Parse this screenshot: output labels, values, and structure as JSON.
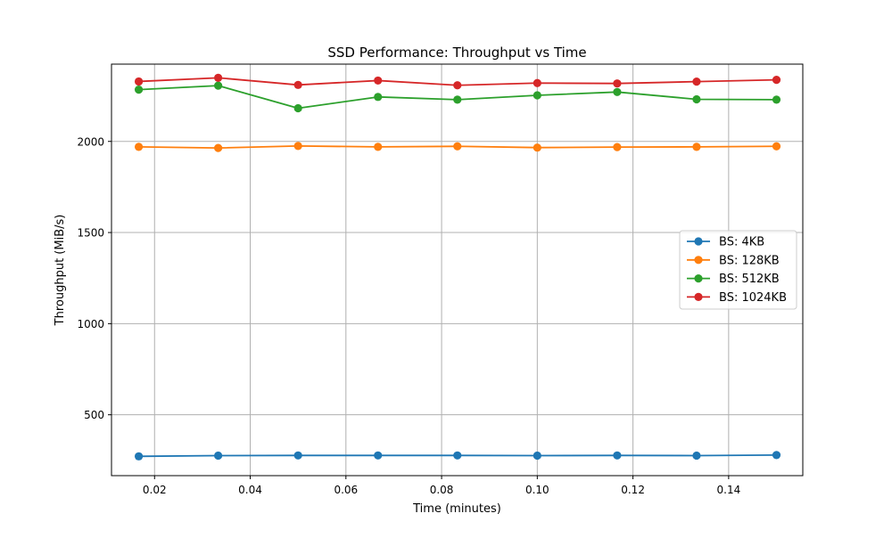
{
  "chart_data": {
    "type": "line",
    "title": "SSD Performance: Throughput vs Time",
    "xlabel": "Time (minutes)",
    "ylabel": "Throughput (MiB/s)",
    "x": [
      0.0167,
      0.0333,
      0.05,
      0.0667,
      0.0833,
      0.1,
      0.1167,
      0.1333,
      0.15
    ],
    "xlim": [
      0.011,
      0.1555
    ],
    "ylim": [
      166,
      2424
    ],
    "xticks": [
      0.02,
      0.04,
      0.06,
      0.08,
      0.1,
      0.12,
      0.14
    ],
    "xtick_labels": [
      "0.02",
      "0.04",
      "0.06",
      "0.08",
      "0.10",
      "0.12",
      "0.14"
    ],
    "yticks": [
      500,
      1000,
      1500,
      2000
    ],
    "ytick_labels": [
      "500",
      "1000",
      "1500",
      "2000"
    ],
    "grid": true,
    "legend_position": "center-right",
    "marker": "circle",
    "series": [
      {
        "name": "BS: 4KB",
        "color": "#1f77b4",
        "values": [
          272,
          276,
          277,
          277,
          277,
          276,
          277,
          276,
          279
        ]
      },
      {
        "name": "BS: 128KB",
        "color": "#ff7f0e",
        "values": [
          1970,
          1964,
          1975,
          1970,
          1973,
          1966,
          1969,
          1970,
          1973
        ]
      },
      {
        "name": "BS: 512KB",
        "color": "#2ca02c",
        "values": [
          2284,
          2306,
          2182,
          2244,
          2229,
          2253,
          2271,
          2231,
          2229
        ]
      },
      {
        "name": "BS: 1024KB",
        "color": "#d62728",
        "values": [
          2329,
          2349,
          2310,
          2334,
          2308,
          2320,
          2318,
          2328,
          2338
        ]
      }
    ]
  }
}
